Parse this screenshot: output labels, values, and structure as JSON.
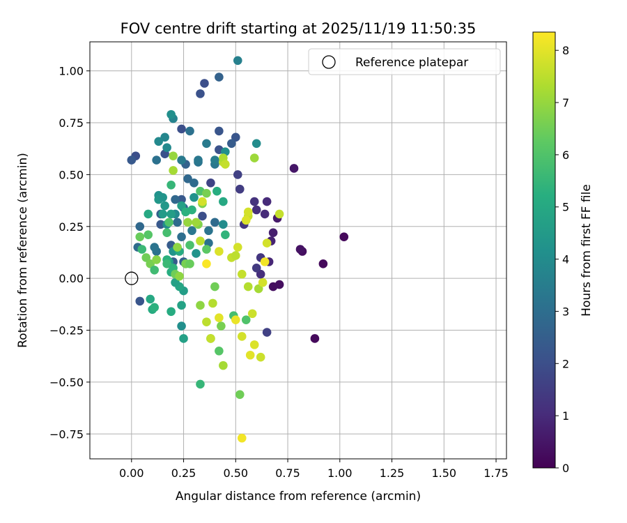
{
  "chart_data": {
    "type": "scatter",
    "title": "FOV centre drift starting at 2025/11/19 11:50:35",
    "xlabel": "Angular distance from reference (arcmin)",
    "ylabel": "Rotation from reference (arcmin)",
    "xlim": [
      -0.2,
      1.8
    ],
    "ylim": [
      -0.87,
      1.14
    ],
    "xticks": [
      0.0,
      0.25,
      0.5,
      0.75,
      1.0,
      1.25,
      1.5,
      1.75
    ],
    "yticks": [
      -0.75,
      -0.5,
      -0.25,
      0.0,
      0.25,
      0.5,
      0.75,
      1.0
    ],
    "grid": true,
    "legend": {
      "position": "top-right",
      "entries": [
        {
          "label": "Reference platepar",
          "marker": "open-circle",
          "x": 0.0,
          "y": 0.0
        }
      ]
    },
    "colorbar": {
      "label": "Hours from first FF file",
      "range": [
        0,
        8.35
      ],
      "ticks": [
        0,
        1,
        2,
        3,
        4,
        5,
        6,
        7,
        8
      ],
      "colormap": "viridis"
    },
    "points": [
      {
        "x": 1.02,
        "y": 0.2,
        "h": 0.2
      },
      {
        "x": 0.92,
        "y": 0.07,
        "h": 0.2
      },
      {
        "x": 0.88,
        "y": -0.29,
        "h": 0.2
      },
      {
        "x": 0.82,
        "y": 0.13,
        "h": 0.3
      },
      {
        "x": 0.81,
        "y": 0.14,
        "h": 0.4
      },
      {
        "x": 0.78,
        "y": 0.53,
        "h": 0.5
      },
      {
        "x": 0.71,
        "y": -0.03,
        "h": 0.3
      },
      {
        "x": 0.68,
        "y": -0.04,
        "h": 0.3
      },
      {
        "x": 0.7,
        "y": 0.29,
        "h": 0.6
      },
      {
        "x": 0.68,
        "y": 0.22,
        "h": 0.7
      },
      {
        "x": 0.67,
        "y": 0.18,
        "h": 0.8
      },
      {
        "x": 0.66,
        "y": 0.08,
        "h": 0.9
      },
      {
        "x": 0.65,
        "y": 0.37,
        "h": 1.0
      },
      {
        "x": 0.64,
        "y": 0.31,
        "h": 1.0
      },
      {
        "x": 0.62,
        "y": 0.02,
        "h": 1.1
      },
      {
        "x": 0.6,
        "y": 0.33,
        "h": 1.1
      },
      {
        "x": 0.59,
        "y": 0.37,
        "h": 1.2
      },
      {
        "x": 0.62,
        "y": 0.1,
        "h": 1.3
      },
      {
        "x": 0.6,
        "y": 0.05,
        "h": 1.4
      },
      {
        "x": 0.65,
        "y": -0.26,
        "h": 1.6
      },
      {
        "x": 0.54,
        "y": 0.26,
        "h": 1.3
      },
      {
        "x": 0.52,
        "y": 0.43,
        "h": 1.5
      },
      {
        "x": 0.51,
        "y": 0.5,
        "h": 1.6
      },
      {
        "x": 0.38,
        "y": 0.46,
        "h": 1.7
      },
      {
        "x": 0.34,
        "y": 0.3,
        "h": 2.0
      },
      {
        "x": 0.35,
        "y": 0.94,
        "h": 2.0
      },
      {
        "x": 0.33,
        "y": 0.89,
        "h": 2.1
      },
      {
        "x": 0.24,
        "y": 0.72,
        "h": 2.0
      },
      {
        "x": 0.42,
        "y": 0.71,
        "h": 2.2
      },
      {
        "x": 0.42,
        "y": 0.62,
        "h": 2.1
      },
      {
        "x": 0.5,
        "y": 0.68,
        "h": 2.2
      },
      {
        "x": 0.48,
        "y": 0.65,
        "h": 2.4
      },
      {
        "x": 0.16,
        "y": 0.6,
        "h": 2.1
      },
      {
        "x": 0.02,
        "y": 0.59,
        "h": 2.0
      },
      {
        "x": 0.0,
        "y": 0.57,
        "h": 2.3
      },
      {
        "x": 0.04,
        "y": -0.11,
        "h": 2.2
      },
      {
        "x": 0.04,
        "y": 0.25,
        "h": 2.8
      },
      {
        "x": 0.03,
        "y": 0.15,
        "h": 2.9
      },
      {
        "x": 0.14,
        "y": 0.26,
        "h": 2.3
      },
      {
        "x": 0.19,
        "y": 0.16,
        "h": 2.4
      },
      {
        "x": 0.2,
        "y": 0.08,
        "h": 2.4
      },
      {
        "x": 0.24,
        "y": 0.38,
        "h": 2.3
      },
      {
        "x": 0.25,
        "y": 0.34,
        "h": 2.6
      },
      {
        "x": 0.14,
        "y": 0.31,
        "h": 2.5
      },
      {
        "x": 0.25,
        "y": 0.08,
        "h": 2.6
      },
      {
        "x": 0.26,
        "y": 0.55,
        "h": 2.6
      },
      {
        "x": 0.27,
        "y": 0.48,
        "h": 2.8
      },
      {
        "x": 0.21,
        "y": 0.38,
        "h": 2.8
      },
      {
        "x": 0.22,
        "y": 0.27,
        "h": 2.9
      },
      {
        "x": 0.24,
        "y": 0.2,
        "h": 3.0
      },
      {
        "x": 0.3,
        "y": 0.46,
        "h": 2.9
      },
      {
        "x": 0.28,
        "y": 0.71,
        "h": 3.1
      },
      {
        "x": 0.36,
        "y": 0.65,
        "h": 3.4
      },
      {
        "x": 0.4,
        "y": 0.27,
        "h": 2.9
      },
      {
        "x": 0.37,
        "y": 0.23,
        "h": 3.2
      },
      {
        "x": 0.37,
        "y": 0.17,
        "h": 3.1
      },
      {
        "x": 0.29,
        "y": 0.23,
        "h": 3.3
      },
      {
        "x": 0.32,
        "y": 0.56,
        "h": 3.2
      },
      {
        "x": 0.32,
        "y": 0.57,
        "h": 3.3
      },
      {
        "x": 0.4,
        "y": 0.55,
        "h": 3.3
      },
      {
        "x": 0.4,
        "y": 0.57,
        "h": 3.5
      },
      {
        "x": 0.51,
        "y": 1.05,
        "h": 3.6
      },
      {
        "x": 0.42,
        "y": 0.97,
        "h": 2.6
      },
      {
        "x": 0.12,
        "y": 0.57,
        "h": 3.1
      },
      {
        "x": 0.12,
        "y": 0.13,
        "h": 3.1
      },
      {
        "x": 0.11,
        "y": 0.15,
        "h": 3.2
      },
      {
        "x": 0.2,
        "y": 0.77,
        "h": 3.7
      },
      {
        "x": 0.19,
        "y": 0.79,
        "h": 4.1
      },
      {
        "x": 0.16,
        "y": 0.68,
        "h": 3.8
      },
      {
        "x": 0.13,
        "y": 0.66,
        "h": 3.9
      },
      {
        "x": 0.17,
        "y": 0.63,
        "h": 3.9
      },
      {
        "x": 0.24,
        "y": 0.57,
        "h": 3.4
      },
      {
        "x": 0.6,
        "y": 0.65,
        "h": 4.0
      },
      {
        "x": 0.45,
        "y": 0.61,
        "h": 4.1
      },
      {
        "x": 0.44,
        "y": 0.26,
        "h": 4.0
      },
      {
        "x": 0.3,
        "y": 0.39,
        "h": 4.2
      },
      {
        "x": 0.31,
        "y": 0.12,
        "h": 4.3
      },
      {
        "x": 0.21,
        "y": 0.31,
        "h": 3.9
      },
      {
        "x": 0.17,
        "y": 0.26,
        "h": 4.0
      },
      {
        "x": 0.13,
        "y": 0.4,
        "h": 4.2
      },
      {
        "x": 0.13,
        "y": 0.38,
        "h": 4.4
      },
      {
        "x": 0.15,
        "y": 0.39,
        "h": 4.3
      },
      {
        "x": 0.15,
        "y": 0.31,
        "h": 4.5
      },
      {
        "x": 0.16,
        "y": 0.35,
        "h": 4.4
      },
      {
        "x": 0.19,
        "y": 0.31,
        "h": 4.6
      },
      {
        "x": 0.24,
        "y": 0.35,
        "h": 4.7
      },
      {
        "x": 0.2,
        "y": 0.13,
        "h": 4.3
      },
      {
        "x": 0.18,
        "y": 0.08,
        "h": 4.6
      },
      {
        "x": 0.24,
        "y": -0.23,
        "h": 4.1
      },
      {
        "x": 0.24,
        "y": -0.13,
        "h": 4.8
      },
      {
        "x": 0.25,
        "y": -0.06,
        "h": 4.6
      },
      {
        "x": 0.23,
        "y": -0.04,
        "h": 4.9
      },
      {
        "x": 0.21,
        "y": -0.02,
        "h": 4.7
      },
      {
        "x": 0.25,
        "y": -0.29,
        "h": 4.7
      },
      {
        "x": 0.08,
        "y": 0.31,
        "h": 5.0
      },
      {
        "x": 0.09,
        "y": -0.1,
        "h": 5.0
      },
      {
        "x": 0.1,
        "y": -0.15,
        "h": 5.1
      },
      {
        "x": 0.11,
        "y": -0.14,
        "h": 5.3
      },
      {
        "x": 0.19,
        "y": -0.16,
        "h": 5.1
      },
      {
        "x": 0.19,
        "y": 0.03,
        "h": 5.2
      },
      {
        "x": 0.17,
        "y": 0.09,
        "h": 5.3
      },
      {
        "x": 0.17,
        "y": 0.07,
        "h": 5.6
      },
      {
        "x": 0.2,
        "y": 0.05,
        "h": 5.4
      },
      {
        "x": 0.23,
        "y": 0.13,
        "h": 5.1
      },
      {
        "x": 0.26,
        "y": 0.32,
        "h": 5.3
      },
      {
        "x": 0.29,
        "y": 0.33,
        "h": 5.3
      },
      {
        "x": 0.26,
        "y": 0.07,
        "h": 5.5
      },
      {
        "x": 0.33,
        "y": -0.51,
        "h": 5.5
      },
      {
        "x": 0.41,
        "y": 0.42,
        "h": 5.2
      },
      {
        "x": 0.44,
        "y": 0.37,
        "h": 5.0
      },
      {
        "x": 0.45,
        "y": 0.21,
        "h": 5.4
      },
      {
        "x": 0.19,
        "y": 0.45,
        "h": 5.5
      },
      {
        "x": 0.18,
        "y": 0.27,
        "h": 6.0
      },
      {
        "x": 0.08,
        "y": 0.21,
        "h": 6.1
      },
      {
        "x": 0.04,
        "y": 0.2,
        "h": 6.4
      },
      {
        "x": 0.07,
        "y": 0.1,
        "h": 6.5
      },
      {
        "x": 0.09,
        "y": 0.07,
        "h": 6.6
      },
      {
        "x": 0.21,
        "y": 0.02,
        "h": 6.5
      },
      {
        "x": 0.23,
        "y": 0.01,
        "h": 6.9
      },
      {
        "x": 0.26,
        "y": 0.07,
        "h": 6.6
      },
      {
        "x": 0.28,
        "y": 0.07,
        "h": 6.4
      },
      {
        "x": 0.32,
        "y": 0.26,
        "h": 6.7
      },
      {
        "x": 0.33,
        "y": 0.42,
        "h": 6.0
      },
      {
        "x": 0.34,
        "y": 0.36,
        "h": 6.7
      },
      {
        "x": 0.36,
        "y": 0.41,
        "h": 6.6
      },
      {
        "x": 0.38,
        "y": -0.29,
        "h": 6.3
      },
      {
        "x": 0.4,
        "y": -0.04,
        "h": 6.5
      },
      {
        "x": 0.42,
        "y": -0.35,
        "h": 6.1
      },
      {
        "x": 0.44,
        "y": -0.42,
        "h": 7.2
      },
      {
        "x": 0.43,
        "y": -0.23,
        "h": 6.6
      },
      {
        "x": 0.49,
        "y": -0.18,
        "h": 5.8
      },
      {
        "x": 0.55,
        "y": -0.2,
        "h": 6.0
      },
      {
        "x": 0.52,
        "y": -0.56,
        "h": 6.5
      },
      {
        "x": 0.59,
        "y": 0.58,
        "h": 7.1
      },
      {
        "x": 0.2,
        "y": 0.52,
        "h": 7.2
      },
      {
        "x": 0.2,
        "y": 0.59,
        "h": 7.0
      },
      {
        "x": 0.33,
        "y": -0.13,
        "h": 6.9
      },
      {
        "x": 0.39,
        "y": -0.12,
        "h": 7.4
      },
      {
        "x": 0.38,
        "y": -0.29,
        "h": 7.6
      },
      {
        "x": 0.42,
        "y": -0.19,
        "h": 8.0
      },
      {
        "x": 0.42,
        "y": 0.13,
        "h": 7.9
      },
      {
        "x": 0.48,
        "y": 0.1,
        "h": 7.6
      },
      {
        "x": 0.51,
        "y": 0.15,
        "h": 7.8
      },
      {
        "x": 0.5,
        "y": 0.11,
        "h": 7.5
      },
      {
        "x": 0.53,
        "y": 0.02,
        "h": 7.6
      },
      {
        "x": 0.56,
        "y": -0.04,
        "h": 7.4
      },
      {
        "x": 0.58,
        "y": -0.17,
        "h": 7.7
      },
      {
        "x": 0.61,
        "y": -0.05,
        "h": 7.2
      },
      {
        "x": 0.63,
        "y": -0.02,
        "h": 7.8
      },
      {
        "x": 0.64,
        "y": 0.08,
        "h": 8.2
      },
      {
        "x": 0.65,
        "y": 0.17,
        "h": 7.8
      },
      {
        "x": 0.71,
        "y": 0.31,
        "h": 7.6
      },
      {
        "x": 0.56,
        "y": 0.3,
        "h": 7.6
      },
      {
        "x": 0.56,
        "y": 0.32,
        "h": 7.8
      },
      {
        "x": 0.55,
        "y": 0.28,
        "h": 7.9
      },
      {
        "x": 0.44,
        "y": 0.56,
        "h": 7.5
      },
      {
        "x": 0.44,
        "y": 0.58,
        "h": 7.3
      },
      {
        "x": 0.45,
        "y": 0.55,
        "h": 7.6
      },
      {
        "x": 0.36,
        "y": 0.07,
        "h": 8.3
      },
      {
        "x": 0.33,
        "y": 0.18,
        "h": 7.5
      },
      {
        "x": 0.31,
        "y": 0.27,
        "h": 7.1
      },
      {
        "x": 0.36,
        "y": -0.21,
        "h": 7.5
      },
      {
        "x": 0.5,
        "y": -0.2,
        "h": 8.1
      },
      {
        "x": 0.53,
        "y": -0.28,
        "h": 7.8
      },
      {
        "x": 0.57,
        "y": -0.37,
        "h": 8.0
      },
      {
        "x": 0.59,
        "y": -0.32,
        "h": 7.9
      },
      {
        "x": 0.62,
        "y": -0.38,
        "h": 7.7
      },
      {
        "x": 0.53,
        "y": -0.77,
        "h": 8.2
      },
      {
        "x": 0.34,
        "y": 0.37,
        "h": 7.8
      },
      {
        "x": 0.27,
        "y": 0.27,
        "h": 7.0
      },
      {
        "x": 0.22,
        "y": 0.15,
        "h": 6.9
      },
      {
        "x": 0.12,
        "y": 0.09,
        "h": 6.8
      },
      {
        "x": 0.36,
        "y": 0.14,
        "h": 6.2
      },
      {
        "x": 0.28,
        "y": 0.16,
        "h": 5.9
      },
      {
        "x": 0.17,
        "y": 0.22,
        "h": 5.8
      },
      {
        "x": 0.11,
        "y": 0.04,
        "h": 5.7
      },
      {
        "x": 0.05,
        "y": 0.14,
        "h": 5.6
      }
    ]
  }
}
